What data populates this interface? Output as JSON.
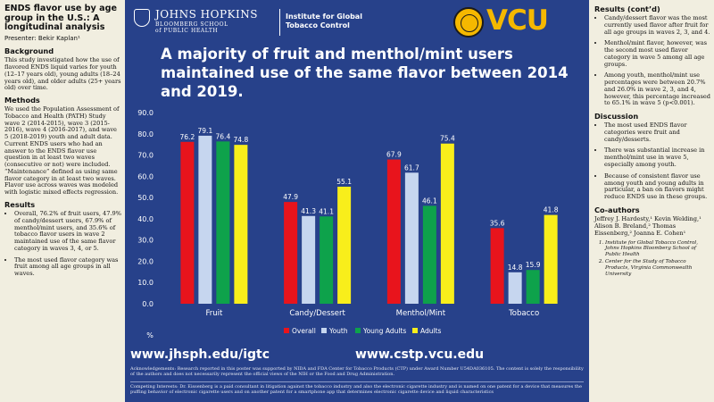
{
  "left": {
    "title": "ENDS flavor use by age group in the U.S.: A longitudinal analysis",
    "presenter": "Presenter: Bekir Kaplan¹",
    "background_heading": "Background",
    "background_text": "This study investigated how the use of flavored ENDS liquid varies for youth (12–17 years old), young adults (18–24 years old), and older adults (25+ years old) over time.",
    "methods_heading": "Methods",
    "methods_text": "We used the Population Assessment of Tobacco and Health (PATH) Study wave 2 (2014-2015), wave 3 (2015-2016), wave 4 (2016-2017), and wave 5 (2018-2019) youth and adult data. Current ENDS users who had an answer to the ENDS flavor use question in at least two waves (consecutive or not) were included. “Maintenance” defined as using same flavor category in at least two waves. Flavor use across waves was modeled with logistic mixed effects regression.",
    "results_heading": "Results",
    "results": [
      "Overall, 76.2% of fruit users, 47.9% of candy/dessert users, 67.9% of menthol/mint users, and 35.6% of tobacco flavor users in wave 2 maintained use of the same flavor category in waves 3, 4, or 5.",
      "The most used flavor category was fruit among all age groups in all waves."
    ]
  },
  "header": {
    "jhu_name": "JOHNS HOPKINS",
    "jhu_school_1": "BLOOMBERG SCHOOL",
    "jhu_school_2": "of PUBLIC HEALTH",
    "igtc_1": "Institute for Global",
    "igtc_2": "Tobacco Control",
    "vcu": "VCU"
  },
  "center": {
    "title": "A majority of fruit and menthol/mint users maintained use of the same flavor between 2014 and 2019.",
    "url_jhu": "www.jhsph.edu/igtc",
    "url_vcu": "www.cstp.vcu.edu",
    "acknowledgements": "Acknowledgements: Research reported in this poster was supported by NIDA and FDA Center for Tobacco Products (CTP) under Award Number U54DA036105. The content is solely the responsibility of the authors and does not necessarily represent the official views of the NIH or the Food and Drug Administration.",
    "competing": "Competing Interests: Dr. Eissenberg is a paid consultant in litigation against the tobacco industry and also the electronic cigarette industry and is named on one patent for a device that measures the puffing behavior of electronic cigarette users and on another patent for a smartphone app that determines electronic cigarette device and liquid characteristics"
  },
  "chart_data": {
    "type": "bar",
    "categories": [
      "Fruit",
      "Candy/Dessert",
      "Menthol/Mint",
      "Tobacco"
    ],
    "series": [
      {
        "name": "Overall",
        "color": "#e8141c",
        "values": [
          76.2,
          47.9,
          67.9,
          35.6
        ]
      },
      {
        "name": "Youth",
        "color": "#c6d6ef",
        "values": [
          79.1,
          41.3,
          61.7,
          14.8
        ]
      },
      {
        "name": "Young Adults",
        "color": "#0ea24b",
        "values": [
          76.4,
          41.1,
          46.1,
          15.9
        ]
      },
      {
        "name": "Adults",
        "color": "#f8ee1b",
        "values": [
          74.8,
          55.1,
          75.4,
          41.8
        ]
      }
    ],
    "ylabel": "%",
    "ylim": [
      0,
      90
    ],
    "yticks": [
      "0.0",
      "10.0",
      "20.0",
      "30.0",
      "40.0",
      "50.0",
      "60.0",
      "70.0",
      "80.0",
      "90.0"
    ],
    "legend": "bottom",
    "grid": false
  },
  "right": {
    "results_cont_heading": "Results (cont’d)",
    "results_cont": [
      "Candy/dessert flavor was the most currently used flavor after fruit for all age groups in waves 2, 3, and 4.",
      "Menthol/mint flavor, however, was the second most used flavor category in wave 5 among all age groups.",
      "Among youth, menthol/mint use percentages were between 20.7% and 26.0% in wave 2, 3, and 4, however, this percentage increased to 65.1% in wave 5 (p<0.001)."
    ],
    "discussion_heading": "Discussion",
    "discussion": [
      "The most used ENDS flavor categories were fruit and candy/desserts.",
      "There was substantial increase in menthol/mint use in wave 5, especially among youth.",
      "Because of consistent flavor use among youth and young adults in particular, a ban on flavors might reduce ENDS use in these groups."
    ],
    "coauthors_heading": "Co-authors",
    "coauthors": "Jeffrey J. Hardesty,¹ Kevin Welding,¹ Alison B. Breland,² Thomas Eissenberg,² Joanna E. Cohen¹",
    "affiliations": [
      "Institute for Global Tobacco Control, Johns Hopkins Bloomberg School of Public Health",
      "Center for the Study of Tobacco Products, Virginia Commonwealth University"
    ]
  }
}
